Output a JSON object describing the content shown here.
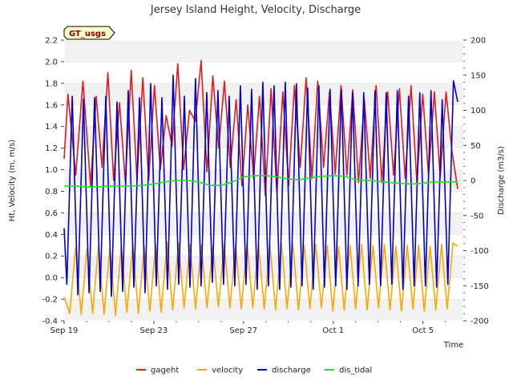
{
  "chart_data": {
    "type": "line",
    "title": "Jersey Island Height, Velocity, Discharge",
    "xlabel": "Time",
    "ylabel": "Ht, Velocity (m, m/s)",
    "y2label": "Discharge (m3/s)",
    "station_label": "GT_usgs",
    "x_unit": "days since Sep 19",
    "xlim": [
      0,
      17.8
    ],
    "ylim": [
      -0.4,
      2.2
    ],
    "y2lim": [
      -200,
      200
    ],
    "x_ticks": [
      {
        "value": 0,
        "label": "Sep 19"
      },
      {
        "value": 4,
        "label": "Sep 23"
      },
      {
        "value": 8,
        "label": "Sep 27"
      },
      {
        "value": 12,
        "label": "Oct 1"
      },
      {
        "value": 16,
        "label": "Oct 5"
      }
    ],
    "y_ticks": [
      {
        "value": -0.4,
        "label": "-0.4"
      },
      {
        "value": -0.2,
        "label": "-0.2"
      },
      {
        "value": 0.0,
        "label": "0.0"
      },
      {
        "value": 0.2,
        "label": "0.2"
      },
      {
        "value": 0.4,
        "label": "0.4"
      },
      {
        "value": 0.6,
        "label": "0.6"
      },
      {
        "value": 0.8,
        "label": "0.8"
      },
      {
        "value": 1.0,
        "label": "1.0"
      },
      {
        "value": 1.2,
        "label": "1.2"
      },
      {
        "value": 1.4,
        "label": "1.4"
      },
      {
        "value": 1.6,
        "label": "1.6"
      },
      {
        "value": 1.8,
        "label": "1.8"
      },
      {
        "value": 2.0,
        "label": "2.0"
      },
      {
        "value": 2.2,
        "label": "2.2"
      }
    ],
    "y2_ticks": [
      {
        "value": -200,
        "label": "-200"
      },
      {
        "value": -150,
        "label": "-150"
      },
      {
        "value": -100,
        "label": "-100"
      },
      {
        "value": -50,
        "label": "-50"
      },
      {
        "value": 0,
        "label": "0"
      },
      {
        "value": 50,
        "label": "50"
      },
      {
        "value": 100,
        "label": "100"
      },
      {
        "value": 150,
        "label": "150"
      },
      {
        "value": 200,
        "label": "200"
      }
    ],
    "grid": true,
    "legend_position": "bottom",
    "series": [
      {
        "name": "gageht",
        "axis": "left",
        "color": "#e41a1c",
        "x": [
          0.0,
          0.17,
          0.52,
          0.84,
          1.18,
          1.43,
          1.69,
          1.95,
          2.21,
          2.47,
          2.73,
          2.99,
          3.25,
          3.51,
          3.77,
          4.03,
          4.29,
          4.55,
          4.81,
          5.07,
          5.33,
          5.59,
          5.85,
          6.11,
          6.37,
          6.63,
          6.89,
          7.15,
          7.41,
          7.67,
          7.93,
          8.19,
          8.45,
          8.71,
          8.97,
          9.23,
          9.49,
          9.75,
          10.01,
          10.27,
          10.53,
          10.79,
          11.05,
          11.31,
          11.57,
          11.83,
          12.09,
          12.35,
          12.61,
          12.87,
          13.13,
          13.39,
          13.65,
          13.91,
          14.17,
          14.43,
          14.69,
          14.95,
          15.21,
          15.47,
          15.73,
          15.99,
          16.25,
          16.51,
          16.77,
          17.03,
          17.29,
          17.55
        ],
        "values": [
          1.1,
          1.7,
          0.95,
          1.82,
          0.85,
          1.68,
          1.02,
          1.9,
          0.9,
          1.62,
          0.88,
          1.92,
          0.9,
          1.85,
          0.9,
          1.78,
          1.0,
          1.5,
          1.22,
          1.98,
          1.0,
          1.55,
          1.45,
          2.01,
          0.98,
          1.87,
          1.2,
          1.82,
          1.02,
          1.65,
          0.85,
          1.6,
          0.92,
          1.68,
          0.76,
          1.75,
          0.78,
          1.72,
          0.85,
          1.78,
          1.02,
          1.85,
          0.92,
          1.82,
          1.02,
          1.72,
          0.96,
          1.78,
          0.95,
          1.74,
          0.88,
          1.65,
          0.92,
          1.78,
          0.88,
          1.72,
          0.95,
          1.75,
          0.92,
          1.78,
          0.88,
          1.7,
          0.95,
          1.72,
          0.93,
          1.72,
          1.18,
          0.82
        ]
      },
      {
        "name": "velocity",
        "axis": "left",
        "color": "#ffa500",
        "x": [
          0.0,
          0.25,
          0.51,
          0.76,
          1.02,
          1.27,
          1.53,
          1.78,
          2.04,
          2.29,
          2.55,
          2.8,
          3.06,
          3.31,
          3.57,
          3.82,
          4.08,
          4.33,
          4.59,
          4.84,
          5.1,
          5.35,
          5.61,
          5.86,
          6.12,
          6.37,
          6.63,
          6.88,
          7.14,
          7.39,
          7.65,
          7.9,
          8.16,
          8.41,
          8.67,
          8.92,
          9.18,
          9.43,
          9.69,
          9.94,
          10.2,
          10.45,
          10.71,
          10.96,
          11.22,
          11.47,
          11.73,
          11.98,
          12.24,
          12.49,
          12.75,
          13.0,
          13.26,
          13.51,
          13.77,
          14.02,
          14.28,
          14.53,
          14.79,
          15.04,
          15.3,
          15.55,
          15.81,
          16.06,
          16.32,
          16.57,
          16.83,
          17.08,
          17.34,
          17.55
        ],
        "values": [
          -0.18,
          -0.33,
          0.28,
          -0.34,
          0.27,
          -0.33,
          0.29,
          -0.34,
          0.28,
          -0.35,
          0.29,
          -0.32,
          0.3,
          -0.33,
          0.29,
          -0.31,
          0.3,
          -0.32,
          0.33,
          -0.3,
          0.32,
          -0.28,
          0.31,
          -0.29,
          0.3,
          -0.28,
          0.29,
          -0.27,
          0.31,
          -0.28,
          0.3,
          -0.29,
          0.32,
          -0.28,
          0.31,
          -0.29,
          0.3,
          -0.3,
          0.32,
          -0.29,
          0.31,
          -0.3,
          0.3,
          -0.29,
          0.31,
          -0.28,
          0.3,
          -0.31,
          0.29,
          -0.3,
          0.3,
          -0.29,
          0.31,
          -0.3,
          0.3,
          -0.28,
          0.31,
          -0.3,
          0.29,
          -0.31,
          0.3,
          -0.29,
          0.3,
          -0.31,
          0.29,
          -0.3,
          0.31,
          -0.29,
          0.32,
          0.29
        ]
      },
      {
        "name": "discharge",
        "axis": "right",
        "color": "#0000cd",
        "x": [
          0.0,
          0.12,
          0.36,
          0.61,
          0.86,
          1.11,
          1.36,
          1.61,
          1.86,
          2.11,
          2.36,
          2.61,
          2.86,
          3.11,
          3.36,
          3.61,
          3.86,
          4.11,
          4.36,
          4.61,
          4.86,
          5.11,
          5.36,
          5.61,
          5.86,
          6.11,
          6.36,
          6.61,
          6.86,
          7.11,
          7.36,
          7.61,
          7.86,
          8.11,
          8.36,
          8.61,
          8.86,
          9.11,
          9.36,
          9.61,
          9.86,
          10.11,
          10.36,
          10.61,
          10.86,
          11.11,
          11.36,
          11.61,
          11.86,
          12.11,
          12.36,
          12.61,
          12.86,
          13.11,
          13.36,
          13.61,
          13.86,
          14.11,
          14.36,
          14.61,
          14.86,
          15.11,
          15.36,
          15.61,
          15.86,
          16.11,
          16.36,
          16.61,
          16.86,
          17.11,
          17.36,
          17.55
        ],
        "values": [
          -68,
          -148,
          120,
          -163,
          116,
          -160,
          118,
          -158,
          120,
          -165,
          112,
          -158,
          128,
          -152,
          118,
          -160,
          138,
          -150,
          118,
          -155,
          150,
          -148,
          120,
          -152,
          145,
          -150,
          125,
          -145,
          128,
          -148,
          120,
          -150,
          135,
          -148,
          130,
          -155,
          140,
          -150,
          135,
          -155,
          140,
          -152,
          138,
          -150,
          132,
          -155,
          135,
          -152,
          130,
          -150,
          130,
          -155,
          125,
          -150,
          125,
          -148,
          128,
          -150,
          125,
          -148,
          128,
          -155,
          120,
          -150,
          125,
          -150,
          128,
          -152,
          115,
          -148,
          142,
          112
        ]
      },
      {
        "name": "dis_tidal",
        "axis": "right",
        "color": "#22dd22",
        "x": [
          0.0,
          0.5,
          1.0,
          1.5,
          2.0,
          2.5,
          3.0,
          3.5,
          4.0,
          4.5,
          5.0,
          5.5,
          6.0,
          6.5,
          7.0,
          7.5,
          8.0,
          8.5,
          9.0,
          9.5,
          10.0,
          10.5,
          11.0,
          11.5,
          12.0,
          12.5,
          13.0,
          13.5,
          14.0,
          14.5,
          15.0,
          15.5,
          16.0,
          16.5,
          17.0,
          17.55
        ],
        "values": [
          -8,
          -8,
          -9,
          -9,
          -8,
          -8,
          -8,
          -7,
          -5,
          -2,
          0,
          0,
          -2,
          -7,
          -7,
          -2,
          5,
          7,
          7,
          5,
          2,
          1,
          4,
          6,
          7,
          6,
          1,
          0,
          -1,
          -3,
          -4,
          -5,
          -4,
          -2,
          -2,
          -2
        ]
      }
    ]
  }
}
